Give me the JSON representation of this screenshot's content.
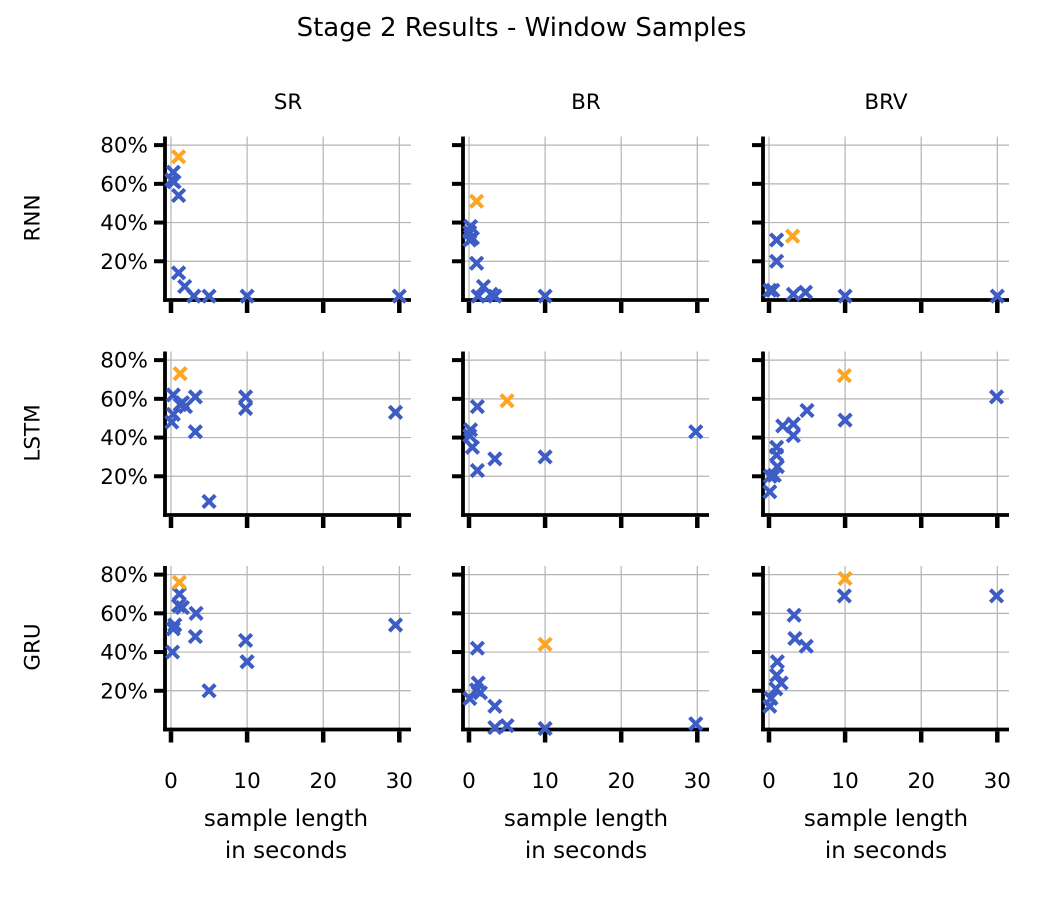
{
  "title": "Stage 2 Results - Window Samples",
  "columns": [
    "SR",
    "BR",
    "BRV"
  ],
  "rows": [
    "RNN",
    "LSTM",
    "GRU"
  ],
  "xlabel_lines": [
    "sample length",
    "in seconds"
  ],
  "colors": {
    "primary": "#3d5cc5",
    "highlight": "#ffa51f",
    "grid": "#b3b3b3",
    "axis": "#000000",
    "text": "#000000",
    "background": "#ffffff"
  },
  "axes": {
    "x_ticks": [
      0,
      10,
      20,
      30
    ],
    "x_tick_labels": [
      "0",
      "10",
      "20",
      "30"
    ],
    "y_ticks": [
      20,
      40,
      60,
      80
    ],
    "y_tick_labels": [
      "20%",
      "40%",
      "60%",
      "80%"
    ],
    "x_range": [
      -0.8,
      31.8
    ],
    "y_range": [
      0,
      84.5
    ],
    "grid": true
  },
  "chart_data": [
    {
      "type": "scatter",
      "row": "RNN",
      "col": "SR",
      "points_blue": [
        [
          0.3,
          66
        ],
        [
          0.1,
          62
        ],
        [
          0.4,
          61
        ],
        [
          1,
          54
        ],
        [
          1,
          14
        ],
        [
          1.8,
          7
        ],
        [
          3,
          2
        ],
        [
          5,
          2
        ],
        [
          10,
          2
        ],
        [
          30,
          2
        ]
      ],
      "points_orange": [
        [
          1,
          74
        ]
      ]
    },
    {
      "type": "scatter",
      "row": "RNN",
      "col": "BR",
      "points_blue": [
        [
          0.2,
          38
        ],
        [
          0.1,
          35
        ],
        [
          0.1,
          31
        ],
        [
          0.45,
          32
        ],
        [
          1,
          19
        ],
        [
          1.2,
          2
        ],
        [
          1.9,
          7
        ],
        [
          2.9,
          3
        ],
        [
          3.4,
          2
        ],
        [
          10,
          2
        ]
      ],
      "points_orange": [
        [
          1,
          51
        ]
      ]
    },
    {
      "type": "scatter",
      "row": "RNN",
      "col": "BRV",
      "points_blue": [
        [
          1,
          31
        ],
        [
          1,
          20
        ],
        [
          0.1,
          5
        ],
        [
          0.5,
          5
        ],
        [
          3.2,
          3
        ],
        [
          4.8,
          4
        ],
        [
          10,
          2
        ],
        [
          30,
          2
        ]
      ],
      "points_orange": [
        [
          3.1,
          33
        ]
      ]
    },
    {
      "type": "scatter",
      "row": "LSTM",
      "col": "SR",
      "points_blue": [
        [
          0.3,
          62
        ],
        [
          3.2,
          61
        ],
        [
          1.2,
          57
        ],
        [
          1.9,
          56
        ],
        [
          1.5,
          58
        ],
        [
          0.3,
          52
        ],
        [
          0.1,
          48
        ],
        [
          3.2,
          43
        ],
        [
          9.8,
          61
        ],
        [
          9.8,
          55
        ],
        [
          5,
          7
        ],
        [
          29.5,
          53
        ]
      ],
      "points_orange": [
        [
          1.2,
          73
        ]
      ]
    },
    {
      "type": "scatter",
      "row": "LSTM",
      "col": "BR",
      "points_blue": [
        [
          1.1,
          56
        ],
        [
          0.2,
          44
        ],
        [
          0.1,
          41
        ],
        [
          0.45,
          35
        ],
        [
          3.4,
          29
        ],
        [
          10,
          30
        ],
        [
          1.1,
          23
        ],
        [
          29.8,
          43
        ]
      ],
      "points_orange": [
        [
          5,
          59
        ]
      ]
    },
    {
      "type": "scatter",
      "row": "LSTM",
      "col": "BRV",
      "points_blue": [
        [
          29.9,
          61
        ],
        [
          5,
          54
        ],
        [
          10,
          49
        ],
        [
          1.8,
          46
        ],
        [
          3.2,
          47
        ],
        [
          3.2,
          41
        ],
        [
          1,
          35
        ],
        [
          1,
          31
        ],
        [
          1.1,
          25
        ],
        [
          0.15,
          20
        ],
        [
          0.7,
          20.5
        ],
        [
          0.1,
          12
        ]
      ],
      "points_orange": [
        [
          9.9,
          72
        ]
      ]
    },
    {
      "type": "scatter",
      "row": "GRU",
      "col": "SR",
      "points_blue": [
        [
          1.1,
          70
        ],
        [
          1,
          64
        ],
        [
          1.5,
          63
        ],
        [
          3.3,
          60
        ],
        [
          0.5,
          54
        ],
        [
          0.3,
          52
        ],
        [
          3.2,
          48
        ],
        [
          0.2,
          40
        ],
        [
          9.8,
          46
        ],
        [
          10,
          35
        ],
        [
          5,
          20
        ],
        [
          29.5,
          54
        ]
      ],
      "points_orange": [
        [
          1.1,
          76
        ]
      ]
    },
    {
      "type": "scatter",
      "row": "GRU",
      "col": "BR",
      "points_blue": [
        [
          1.1,
          42
        ],
        [
          1.2,
          24
        ],
        [
          1,
          20.5
        ],
        [
          1.5,
          19
        ],
        [
          0.1,
          16
        ],
        [
          3.4,
          12
        ],
        [
          3.4,
          1
        ],
        [
          5,
          2
        ],
        [
          10,
          0.5
        ],
        [
          29.8,
          3
        ]
      ],
      "points_orange": [
        [
          10,
          44
        ]
      ]
    },
    {
      "type": "scatter",
      "row": "GRU",
      "col": "BRV",
      "points_blue": [
        [
          9.9,
          69
        ],
        [
          29.9,
          69
        ],
        [
          3.3,
          59
        ],
        [
          3.4,
          47
        ],
        [
          4.9,
          43
        ],
        [
          1.1,
          35
        ],
        [
          1,
          28
        ],
        [
          1.6,
          24
        ],
        [
          0.9,
          21
        ],
        [
          0.25,
          16
        ],
        [
          0.1,
          12
        ]
      ],
      "points_orange": [
        [
          10,
          78
        ]
      ]
    }
  ]
}
